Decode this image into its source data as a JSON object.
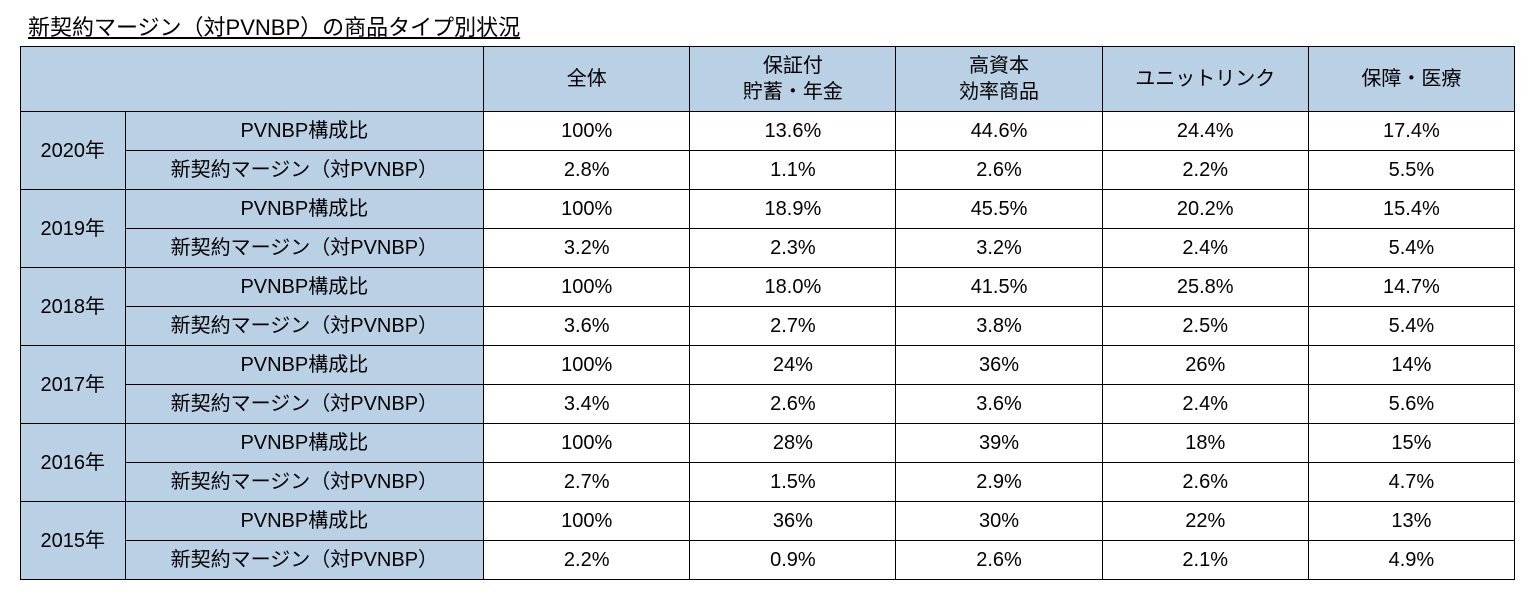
{
  "title": "新契約マージン（対PVNBP）の商品タイプ別状況",
  "columns": [
    "全体",
    "保証付\n貯蓄・年金",
    "高資本\n効率商品",
    "ユニットリンク",
    "保障・医療"
  ],
  "metric_labels": {
    "pvnbp": "PVNBP構成比",
    "margin": "新契約マージン（対PVNBP）"
  },
  "years": [
    {
      "year": "2020年",
      "pvnbp": [
        "100%",
        "13.6%",
        "44.6%",
        "24.4%",
        "17.4%"
      ],
      "margin": [
        "2.8%",
        "1.1%",
        "2.6%",
        "2.2%",
        "5.5%"
      ]
    },
    {
      "year": "2019年",
      "pvnbp": [
        "100%",
        "18.9%",
        "45.5%",
        "20.2%",
        "15.4%"
      ],
      "margin": [
        "3.2%",
        "2.3%",
        "3.2%",
        "2.4%",
        "5.4%"
      ]
    },
    {
      "year": "2018年",
      "pvnbp": [
        "100%",
        "18.0%",
        "41.5%",
        "25.8%",
        "14.7%"
      ],
      "margin": [
        "3.6%",
        "2.7%",
        "3.8%",
        "2.5%",
        "5.4%"
      ]
    },
    {
      "year": "2017年",
      "pvnbp": [
        "100%",
        "24%",
        "36%",
        "26%",
        "14%"
      ],
      "margin": [
        "3.4%",
        "2.6%",
        "3.6%",
        "2.4%",
        "5.6%"
      ]
    },
    {
      "year": "2016年",
      "pvnbp": [
        "100%",
        "28%",
        "39%",
        "18%",
        "15%"
      ],
      "margin": [
        "2.7%",
        "1.5%",
        "2.9%",
        "2.6%",
        "4.7%"
      ]
    },
    {
      "year": "2015年",
      "pvnbp": [
        "100%",
        "36%",
        "30%",
        "22%",
        "13%"
      ],
      "margin": [
        "2.2%",
        "0.9%",
        "2.6%",
        "2.1%",
        "4.9%"
      ]
    }
  ],
  "styling": {
    "header_bg": "#bad0e5",
    "border_color": "#000000",
    "cell_bg": "#ffffff",
    "font_size_title": 22,
    "font_size_cell": 20
  }
}
